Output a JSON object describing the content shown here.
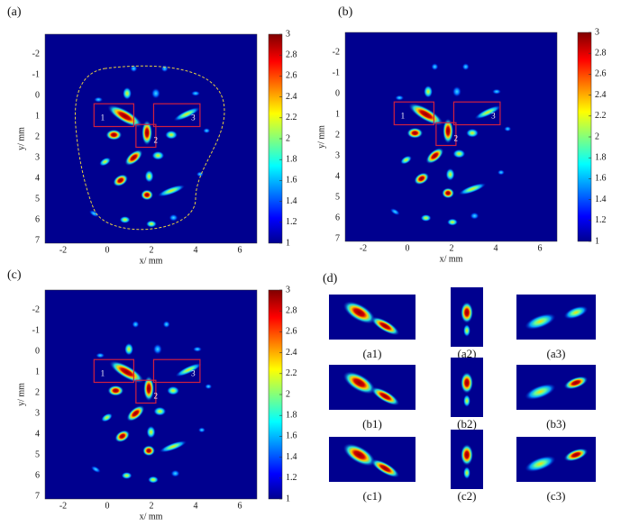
{
  "panels": [
    {
      "label": "(a)",
      "xlabel": "x/ mm",
      "ylabel": "y/ mm",
      "xticks": [
        -2,
        0,
        2,
        4,
        6
      ],
      "yticks": [
        -2,
        -1,
        0,
        1,
        2,
        3,
        4,
        5,
        6,
        7
      ],
      "colorbar_ticks": [
        1,
        1.2,
        1.4,
        1.6,
        1.8,
        2,
        2.2,
        2.4,
        2.6,
        2.8,
        3
      ],
      "regions": [
        "1",
        "2",
        "3"
      ]
    },
    {
      "label": "(b)",
      "xlabel": "x/ mm",
      "ylabel": "y/ mm",
      "xticks": [
        -2,
        0,
        2,
        4,
        6
      ],
      "yticks": [
        -2,
        -1,
        0,
        1,
        2,
        3,
        4,
        5,
        6,
        7
      ],
      "colorbar_ticks": [
        1,
        1.2,
        1.4,
        1.6,
        1.8,
        2,
        2.2,
        2.4,
        2.6,
        2.8,
        3
      ],
      "regions": [
        "1",
        "2",
        "3"
      ]
    },
    {
      "label": "(c)",
      "xlabel": "x/ mm",
      "ylabel": "y/ mm",
      "xticks": [
        -2,
        0,
        2,
        4,
        6
      ],
      "yticks": [
        -2,
        -1,
        0,
        1,
        2,
        3,
        4,
        5,
        6,
        7
      ],
      "colorbar_ticks": [
        1,
        1.2,
        1.4,
        1.6,
        1.8,
        2,
        2.2,
        2.4,
        2.6,
        2.8,
        3
      ],
      "regions": [
        "1",
        "2",
        "3"
      ]
    }
  ],
  "detail": {
    "label": "(d)",
    "crops": [
      [
        "(a1)",
        "(a2)",
        "(a3)"
      ],
      [
        "(b1)",
        "(b2)",
        "(b3)"
      ],
      [
        "(c1)",
        "(c2)",
        "(c3)"
      ]
    ]
  }
}
